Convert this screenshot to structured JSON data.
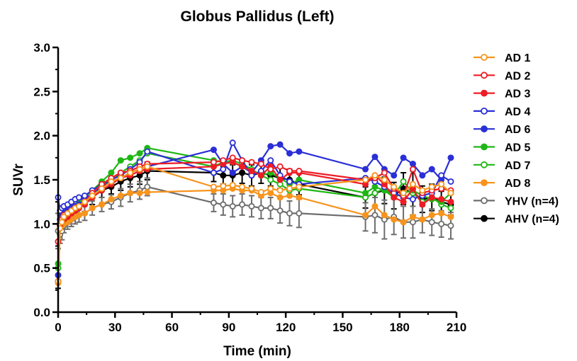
{
  "chart_data": {
    "type": "line",
    "title": "Globus Pallidus (Left)",
    "xlabel": "Time (min)",
    "ylabel": "SUVr",
    "xlim": [
      0,
      210
    ],
    "ylim": [
      0,
      3
    ],
    "x_ticks": [
      "0",
      "30",
      "60",
      "90",
      "120",
      "150",
      "180",
      "210"
    ],
    "y_ticks": [
      "0.0",
      "0.5",
      "1.0",
      "1.5",
      "2.0",
      "2.5",
      "3.0"
    ],
    "grid": false,
    "legend_position": "right",
    "series": [
      {
        "name": "AD 1",
        "color": "#f7941d",
        "marker": "open-circle",
        "x": [
          0,
          1,
          2,
          3,
          5,
          7,
          9,
          11,
          14,
          18,
          23,
          28,
          33,
          38,
          43,
          47,
          82,
          87,
          92,
          97,
          102,
          107,
          112,
          117,
          122,
          127,
          162,
          167,
          172,
          177,
          182,
          187,
          192,
          197,
          202,
          207
        ],
        "y": [
          0.35,
          0.95,
          1.02,
          1.08,
          1.12,
          1.15,
          1.18,
          1.2,
          1.25,
          1.32,
          1.4,
          1.48,
          1.52,
          1.58,
          1.62,
          1.65,
          1.42,
          1.43,
          1.44,
          1.42,
          1.4,
          1.36,
          1.4,
          1.38,
          1.4,
          1.42,
          1.5,
          1.55,
          1.5,
          1.42,
          1.35,
          1.45,
          1.38,
          1.42,
          1.45,
          1.35
        ]
      },
      {
        "name": "AD 2",
        "color": "#ee1c25",
        "marker": "open-circle",
        "x": [
          0,
          1,
          2,
          3,
          5,
          7,
          9,
          11,
          14,
          18,
          23,
          28,
          33,
          38,
          43,
          47,
          82,
          87,
          92,
          97,
          102,
          107,
          112,
          117,
          122,
          127,
          162,
          167,
          172,
          177,
          182,
          187,
          192,
          197,
          202,
          207
        ],
        "y": [
          0.8,
          1.0,
          1.05,
          1.1,
          1.12,
          1.15,
          1.18,
          1.2,
          1.25,
          1.35,
          1.45,
          1.52,
          1.58,
          1.6,
          1.65,
          1.68,
          1.7,
          1.72,
          1.75,
          1.72,
          1.7,
          1.68,
          1.62,
          1.65,
          1.6,
          1.6,
          1.5,
          1.52,
          1.58,
          1.4,
          1.32,
          1.62,
          1.35,
          1.38,
          1.4,
          1.38
        ]
      },
      {
        "name": "AD 3",
        "color": "#ee1c25",
        "marker": "filled-circle",
        "x": [
          0,
          1,
          2,
          3,
          5,
          7,
          9,
          11,
          14,
          18,
          23,
          28,
          33,
          38,
          43,
          47,
          82,
          87,
          92,
          97,
          102,
          107,
          112,
          117,
          122,
          127,
          162,
          167,
          172,
          177,
          182,
          187,
          192,
          197,
          202,
          207
        ],
        "y": [
          0.8,
          0.98,
          1.02,
          1.05,
          1.08,
          1.12,
          1.15,
          1.18,
          1.22,
          1.3,
          1.38,
          1.45,
          1.52,
          1.55,
          1.6,
          1.62,
          1.65,
          1.68,
          1.7,
          1.65,
          1.6,
          1.55,
          1.65,
          1.5,
          1.58,
          1.58,
          1.45,
          1.55,
          1.45,
          1.3,
          1.25,
          1.4,
          1.22,
          1.3,
          1.28,
          1.25
        ]
      },
      {
        "name": "AD 4",
        "color": "#2a2fd6",
        "marker": "open-circle",
        "x": [
          0,
          1,
          2,
          3,
          5,
          7,
          9,
          11,
          14,
          18,
          23,
          28,
          33,
          38,
          43,
          47,
          82,
          87,
          92,
          97,
          102,
          107,
          112,
          117,
          122,
          127,
          162,
          167,
          172,
          177,
          182,
          187,
          192,
          197,
          202,
          207
        ],
        "y": [
          1.3,
          1.15,
          1.18,
          1.2,
          1.22,
          1.25,
          1.28,
          1.3,
          1.32,
          1.38,
          1.45,
          1.5,
          1.55,
          1.62,
          1.7,
          1.82,
          1.58,
          1.62,
          1.92,
          1.72,
          1.55,
          1.6,
          1.72,
          1.55,
          1.48,
          1.45,
          1.52,
          1.48,
          1.42,
          1.35,
          1.3,
          1.28,
          1.32,
          1.35,
          1.55,
          1.48
        ]
      },
      {
        "name": "AD 6",
        "color": "#2a2fd6",
        "marker": "filled-circle",
        "x": [
          0,
          1,
          2,
          3,
          5,
          7,
          9,
          11,
          14,
          18,
          23,
          28,
          33,
          38,
          43,
          47,
          82,
          87,
          92,
          97,
          102,
          107,
          112,
          117,
          122,
          127,
          162,
          167,
          172,
          177,
          182,
          187,
          192,
          197,
          202,
          207
        ],
        "y": [
          0.42,
          1.05,
          1.1,
          1.12,
          1.15,
          1.18,
          1.2,
          1.22,
          1.28,
          1.35,
          1.42,
          1.48,
          1.52,
          1.58,
          1.62,
          1.65,
          1.84,
          1.68,
          1.58,
          1.65,
          1.58,
          1.72,
          1.88,
          1.9,
          1.8,
          1.82,
          1.62,
          1.76,
          1.62,
          1.55,
          1.75,
          1.68,
          1.55,
          1.62,
          1.5,
          1.75
        ]
      },
      {
        "name": "AD 5",
        "color": "#1fb714",
        "marker": "filled-circle",
        "x": [
          0,
          1,
          2,
          3,
          5,
          7,
          9,
          11,
          14,
          18,
          23,
          28,
          33,
          38,
          43,
          47,
          82,
          87,
          92,
          97,
          102,
          107,
          112,
          117,
          122,
          127,
          162,
          167,
          172,
          177,
          182,
          187,
          192,
          197,
          202,
          207
        ],
        "y": [
          0.55,
          1.0,
          1.05,
          1.1,
          1.12,
          1.18,
          1.2,
          1.25,
          1.3,
          1.38,
          1.48,
          1.58,
          1.72,
          1.75,
          1.8,
          1.86,
          1.72,
          1.7,
          1.7,
          1.65,
          1.6,
          1.55,
          1.58,
          1.52,
          1.45,
          1.5,
          1.35,
          1.42,
          1.38,
          1.3,
          1.35,
          1.38,
          1.32,
          1.28,
          1.25,
          1.35
        ]
      },
      {
        "name": "AD 7",
        "color": "#1fb714",
        "marker": "open-circle",
        "x": [
          0,
          1,
          2,
          3,
          5,
          7,
          9,
          11,
          14,
          18,
          23,
          28,
          33,
          38,
          43,
          47,
          82,
          87,
          92,
          97,
          102,
          107,
          112,
          117,
          122,
          127,
          162,
          167,
          172,
          177,
          182,
          187,
          192,
          197,
          202,
          207
        ],
        "y": [
          0.5,
          0.98,
          1.02,
          1.05,
          1.08,
          1.12,
          1.15,
          1.2,
          1.25,
          1.32,
          1.42,
          1.5,
          1.58,
          1.65,
          1.72,
          1.8,
          1.65,
          1.7,
          1.72,
          1.68,
          1.62,
          1.55,
          1.5,
          1.45,
          1.38,
          1.4,
          1.3,
          1.35,
          1.4,
          1.32,
          1.48,
          1.35,
          1.25,
          1.3,
          1.22,
          1.18
        ]
      },
      {
        "name": "AD 8",
        "color": "#f7941d",
        "marker": "filled-circle",
        "x": [
          0,
          1,
          2,
          3,
          5,
          7,
          9,
          11,
          14,
          18,
          23,
          28,
          33,
          38,
          43,
          47,
          82,
          87,
          92,
          97,
          102,
          107,
          112,
          117,
          122,
          127,
          162,
          167,
          172,
          177,
          182,
          187,
          192,
          197,
          202,
          207
        ],
        "y": [
          0.33,
          0.95,
          0.98,
          1.0,
          1.02,
          1.05,
          1.08,
          1.1,
          1.12,
          1.18,
          1.22,
          1.28,
          1.32,
          1.35,
          1.35,
          1.36,
          1.38,
          1.38,
          1.4,
          1.38,
          1.38,
          1.32,
          1.35,
          1.3,
          1.32,
          1.3,
          1.1,
          1.2,
          1.1,
          1.05,
          1.02,
          1.08,
          1.05,
          1.1,
          1.12,
          1.08
        ]
      },
      {
        "name": "YHV (n=4)",
        "color": "#6d6d6d",
        "marker": "open-circle",
        "x": [
          0,
          1,
          2,
          3,
          5,
          7,
          9,
          11,
          14,
          18,
          23,
          28,
          33,
          38,
          43,
          47,
          82,
          87,
          92,
          97,
          102,
          107,
          112,
          117,
          122,
          127,
          162,
          167,
          172,
          177,
          182,
          187,
          192,
          197,
          202,
          207
        ],
        "y": [
          0.92,
          0.88,
          0.92,
          0.98,
          1.02,
          1.05,
          1.08,
          1.1,
          1.12,
          1.18,
          1.22,
          1.25,
          1.3,
          1.35,
          1.38,
          1.42,
          1.24,
          1.22,
          1.2,
          1.22,
          1.2,
          1.18,
          1.18,
          1.15,
          1.12,
          1.12,
          1.08,
          1.1,
          1.05,
          1.08,
          1.02,
          1.02,
          1.05,
          1.02,
          1.0,
          0.98
        ],
        "err": [
          0.2,
          0.1,
          0.1,
          0.08,
          0.08,
          0.08,
          0.08,
          0.08,
          0.08,
          0.08,
          0.08,
          0.08,
          0.1,
          0.1,
          0.1,
          0.1,
          0.1,
          0.12,
          0.12,
          0.12,
          0.12,
          0.12,
          0.12,
          0.14,
          0.14,
          0.16,
          0.16,
          0.2,
          0.22,
          0.2,
          0.18,
          0.18,
          0.15,
          0.15,
          0.15,
          0.15
        ]
      },
      {
        "name": "AHV (n=4)",
        "color": "#000000",
        "marker": "filled-circle",
        "x": [
          0,
          1,
          2,
          3,
          5,
          7,
          9,
          11,
          14,
          18,
          23,
          28,
          33,
          38,
          43,
          47,
          82,
          87,
          92,
          97,
          102,
          107,
          112,
          117,
          122,
          127,
          162,
          167,
          172,
          177,
          182,
          187,
          192,
          197,
          202,
          207
        ],
        "y": [
          0.35,
          1.0,
          1.02,
          1.05,
          1.08,
          1.12,
          1.15,
          1.18,
          1.22,
          1.3,
          1.38,
          1.42,
          1.48,
          1.52,
          1.55,
          1.6,
          1.58,
          1.55,
          1.55,
          1.58,
          1.55,
          1.58,
          1.55,
          1.52,
          1.5,
          1.45,
          1.3,
          1.35,
          1.38,
          1.32,
          1.4,
          1.35,
          1.28,
          1.3,
          1.25,
          1.22
        ],
        "err": [
          0.08,
          0.1,
          0.08,
          0.08,
          0.08,
          0.08,
          0.08,
          0.08,
          0.08,
          0.08,
          0.08,
          0.08,
          0.1,
          0.1,
          0.1,
          0.1,
          0.1,
          0.1,
          0.12,
          0.12,
          0.12,
          0.12,
          0.12,
          0.12,
          0.12,
          0.12,
          0.12,
          0.15,
          0.15,
          0.15,
          0.18,
          0.25,
          0.15,
          0.15,
          0.12,
          0.12
        ]
      }
    ]
  }
}
